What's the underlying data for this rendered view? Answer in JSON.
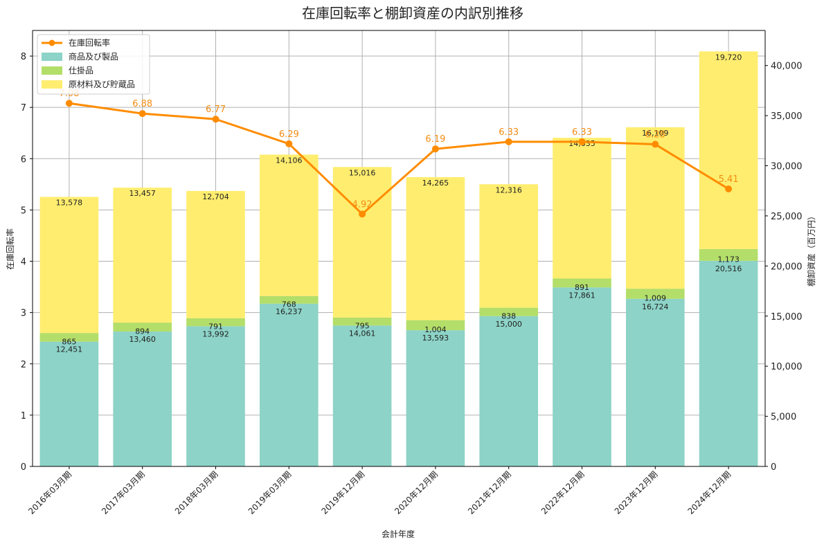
{
  "chart_data": {
    "type": "bar",
    "title": "在庫回転率と棚卸資産の内訳別推移",
    "xlabel": "会計年度",
    "ylabel_left": "在庫回転率",
    "ylabel_right": "棚卸資産（百万円）",
    "ylim_left": [
      0,
      8.5
    ],
    "ylim_right": [
      0,
      43500
    ],
    "yticks_left": [
      "0",
      "1",
      "2",
      "3",
      "4",
      "5",
      "6",
      "7",
      "8"
    ],
    "yticks_right": [
      "0",
      "5,000",
      "10,000",
      "15,000",
      "20,000",
      "25,000",
      "30,000",
      "35,000",
      "40,000"
    ],
    "grid": true,
    "legend_position": "top-left",
    "categories": [
      "2016年03月期",
      "2017年03月期",
      "2018年03月期",
      "2019年03月期",
      "2019年12月期",
      "2020年12月期",
      "2021年12月期",
      "2022年12月期",
      "2023年12月期",
      "2024年12月期"
    ],
    "series": [
      {
        "name": "商品及び製品",
        "kind": "bar",
        "color": "#8dd3c7",
        "values": [
          12451,
          13460,
          13992,
          16237,
          14061,
          13593,
          15000,
          17861,
          16724,
          20516
        ],
        "labels": [
          "12,451",
          "13,460",
          "13,992",
          "16,237",
          "14,061",
          "13,593",
          "15,000",
          "17,861",
          "16,724",
          "20,516"
        ]
      },
      {
        "name": "仕掛品",
        "kind": "bar",
        "color": "#b3de69",
        "values": [
          865,
          894,
          791,
          768,
          795,
          1004,
          838,
          891,
          1009,
          1173
        ],
        "labels": [
          "865",
          "894",
          "791",
          "768",
          "795",
          "1,004",
          "838",
          "891",
          "1,009",
          "1,173"
        ]
      },
      {
        "name": "原材料及び貯蔵品",
        "kind": "bar",
        "color": "#ffed6f",
        "values": [
          13578,
          13457,
          12704,
          14106,
          15016,
          14265,
          12316,
          14035,
          16109,
          19720
        ],
        "labels": [
          "13,578",
          "13,457",
          "12,704",
          "14,106",
          "15,016",
          "14,265",
          "12,316",
          "14,035",
          "16,109",
          "19,720"
        ]
      },
      {
        "name": "在庫回転率",
        "kind": "line",
        "color": "#ff8c00",
        "values": [
          7.08,
          6.88,
          6.77,
          6.29,
          4.92,
          6.19,
          6.33,
          6.33,
          6.28,
          5.41
        ],
        "labels": [
          "7.08",
          "6.88",
          "6.77",
          "6.29",
          "4.92",
          "6.19",
          "6.33",
          "6.33",
          "6.28",
          "5.41"
        ]
      }
    ]
  }
}
